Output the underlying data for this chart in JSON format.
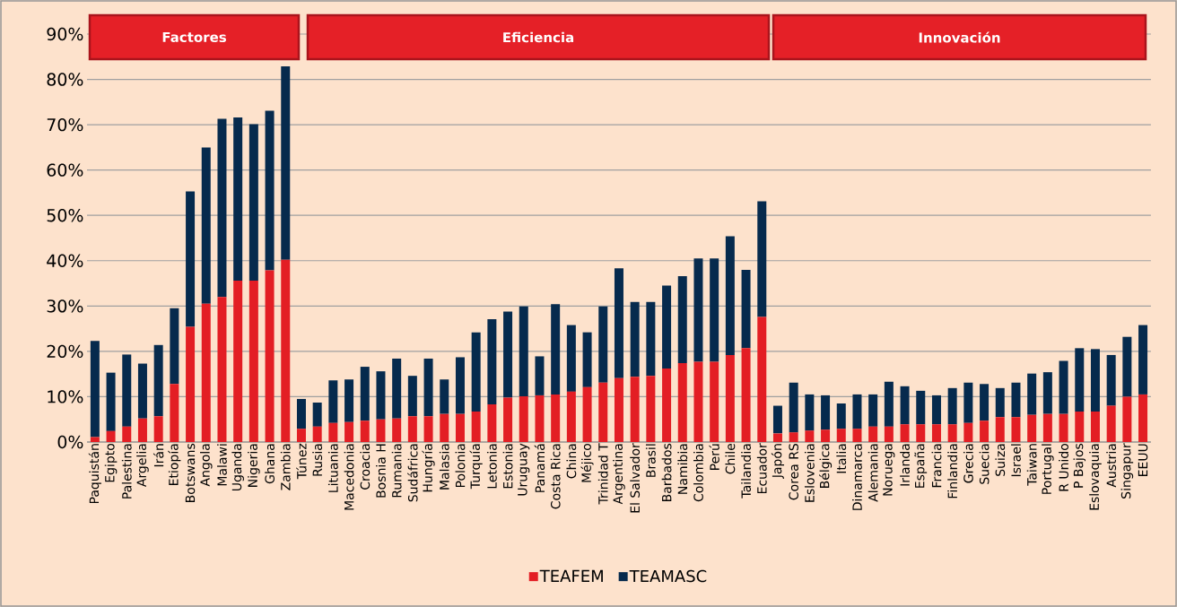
{
  "chart_data": {
    "type": "bar",
    "stacked": true,
    "categories": [
      "Paquistán",
      "Egipto",
      "Palestina",
      "Argelia",
      "Irán",
      "Etiopía",
      "Botswans",
      "Angola",
      "Malawi",
      "Uganda",
      "Nigeria",
      "Ghana",
      "Zambia",
      "Túnez",
      "Rusia",
      "Lituania",
      "Macedonia",
      "Croacia",
      "Bosnia H",
      "Rumania",
      "Sudáfrica",
      "Hungría",
      "Malasia",
      "Polonia",
      "Turquía",
      "Letonia",
      "Estonia",
      "Uruguay",
      "Panamá",
      "Costa Rica",
      "China",
      "Méjico",
      "Trinidad T",
      "Argentina",
      "El Salvador",
      "Brasil",
      "Barbados",
      "Namibia",
      "Colombia",
      "Perú",
      "Chile",
      "Tailandia",
      "Ecuador",
      "Japón",
      "Corea RS",
      "Eslovenia",
      "Bélgica",
      "Italia",
      "Dinamarca",
      "Alemania",
      "Noruega",
      "Irlanda",
      "España",
      "Francia",
      "Finlandia",
      "Grecia",
      "Suecia",
      "Suiza",
      "Israel",
      "Taiwan",
      "Portugal",
      "R Unido",
      "P Bajos",
      "Eslovaquia",
      "Austria",
      "Singapur",
      "EEUU"
    ],
    "series": [
      {
        "name": "TEAFEM",
        "color": "#e31e24",
        "values": [
          1.1,
          2.4,
          3.4,
          5.2,
          5.7,
          12.8,
          25.4,
          30.5,
          32.0,
          35.6,
          35.6,
          37.9,
          40.2,
          2.9,
          3.4,
          4.2,
          4.4,
          4.7,
          5.0,
          5.2,
          5.7,
          5.7,
          6.2,
          6.2,
          6.7,
          8.3,
          9.8,
          10.1,
          10.3,
          10.5,
          11.1,
          12.1,
          13.1,
          14.1,
          14.4,
          14.6,
          16.2,
          17.4,
          17.7,
          17.7,
          19.2,
          20.7,
          27.6,
          1.9,
          2.1,
          2.5,
          2.7,
          2.9,
          2.9,
          3.4,
          3.4,
          3.9,
          3.9,
          3.9,
          3.9,
          4.2,
          4.7,
          5.5,
          5.5,
          6.0,
          6.2,
          6.2,
          6.7,
          6.7,
          8.0,
          10.0,
          10.5
        ]
      },
      {
        "name": "TEAMASC",
        "color": "#062a4d",
        "values": [
          21.2,
          12.9,
          15.9,
          12.1,
          15.7,
          16.7,
          29.9,
          34.5,
          39.3,
          36.0,
          34.5,
          35.2,
          42.7,
          6.6,
          5.3,
          9.4,
          9.4,
          11.9,
          10.6,
          13.2,
          8.9,
          12.7,
          7.6,
          12.5,
          17.5,
          18.8,
          19.0,
          19.8,
          8.6,
          19.9,
          14.7,
          12.1,
          16.8,
          24.2,
          16.5,
          16.3,
          18.3,
          19.2,
          22.8,
          22.8,
          26.2,
          17.3,
          25.5,
          6.1,
          11.0,
          8.0,
          7.6,
          5.6,
          7.6,
          7.1,
          9.9,
          8.4,
          7.4,
          6.4,
          8.0,
          8.9,
          8.1,
          6.4,
          7.6,
          9.1,
          9.2,
          11.7,
          14.0,
          13.8,
          11.2,
          13.2,
          15.3
        ]
      }
    ],
    "ylim": [
      0,
      90
    ],
    "yticks": [
      {
        "value": 0,
        "label": "0%"
      },
      {
        "value": 10,
        "label": "10%"
      },
      {
        "value": 20,
        "label": "20%"
      },
      {
        "value": 30,
        "label": "30%"
      },
      {
        "value": 40,
        "label": "40%"
      },
      {
        "value": 50,
        "label": "50%"
      },
      {
        "value": 60,
        "label": "60%"
      },
      {
        "value": 70,
        "label": "70%"
      },
      {
        "value": 80,
        "label": "80%"
      },
      {
        "value": 90,
        "label": "90%"
      }
    ],
    "grid": "y",
    "legend": "bottom",
    "annotations": [
      "Factores",
      "Eficiencia",
      "Innovación"
    ]
  }
}
